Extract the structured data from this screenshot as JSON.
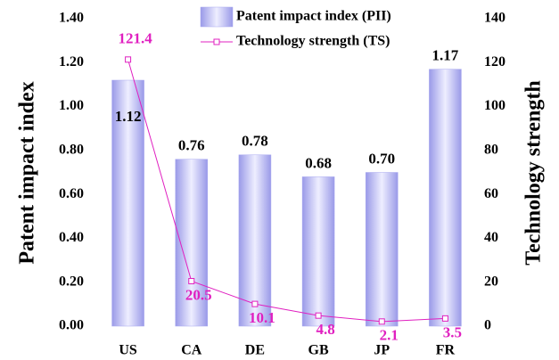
{
  "chart_data": {
    "type": "bar_line",
    "categories": [
      "US",
      "CA",
      "DE",
      "GB",
      "JP",
      "FR"
    ],
    "series": [
      {
        "name": "Patent impact index (PII)",
        "type": "bar",
        "color": "#a8a8f0",
        "values": [
          1.12,
          0.76,
          0.78,
          0.68,
          0.7,
          1.17
        ],
        "value_labels": [
          "1.12",
          "0.76",
          "0.78",
          "0.68",
          "0.70",
          "1.17"
        ]
      },
      {
        "name": "Technology strength (TS)",
        "type": "line",
        "axis": "y2",
        "color": "#e020c0",
        "values": [
          121.4,
          20.5,
          10.1,
          4.8,
          2.1,
          3.5
        ]
      }
    ],
    "ylabel": "Patent impact index",
    "y2label": "Technology strength",
    "ylim": [
      0,
      1.4
    ],
    "yticks": [
      {
        "value": 0,
        "label": "0.00"
      },
      {
        "value": 0.2,
        "label": "0.20"
      },
      {
        "value": 0.4,
        "label": "0.40"
      },
      {
        "value": 0.6,
        "label": "0.60"
      },
      {
        "value": 0.8,
        "label": "0.80"
      },
      {
        "value": 1.0,
        "label": "1.00"
      },
      {
        "value": 1.2,
        "label": "1.20"
      },
      {
        "value": 1.4,
        "label": "1.40"
      }
    ],
    "y2lim": [
      0,
      140
    ],
    "y2ticks": [
      0,
      20,
      40,
      60,
      80,
      100,
      120,
      140
    ]
  }
}
